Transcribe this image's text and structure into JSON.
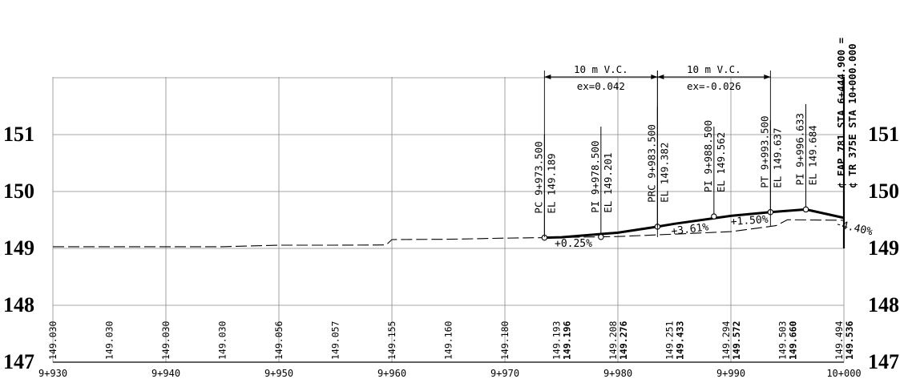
{
  "elevation_labels": [
    "151",
    "150",
    "149",
    "148",
    "147"
  ],
  "stations": [
    {
      "label": "9+930",
      "sta": 9930
    },
    {
      "label": "9+940",
      "sta": 9940
    },
    {
      "label": "9+950",
      "sta": 9950
    },
    {
      "label": "9+960",
      "sta": 9960
    },
    {
      "label": "9+970",
      "sta": 9970
    },
    {
      "label": "9+980",
      "sta": 9980
    },
    {
      "label": "9+990",
      "sta": 9990
    },
    {
      "label": "10+000",
      "sta": 10000
    }
  ],
  "grade_elevations": [
    {
      "sta": 9930,
      "existing": "149.030"
    },
    {
      "sta": 9935,
      "existing": "149.030"
    },
    {
      "sta": 9940,
      "existing": "149.030"
    },
    {
      "sta": 9945,
      "existing": "149.030"
    },
    {
      "sta": 9950,
      "existing": "149.056"
    },
    {
      "sta": 9955,
      "existing": "149.057"
    },
    {
      "sta": 9960,
      "existing": "149.155"
    },
    {
      "sta": 9965,
      "existing": "149.160"
    },
    {
      "sta": 9970,
      "existing": "149.180"
    },
    {
      "sta": 9975,
      "existing": "149.193",
      "proposed": "149.196"
    },
    {
      "sta": 9980,
      "existing": "149.208",
      "proposed": "149.276"
    },
    {
      "sta": 9985,
      "existing": "149.251",
      "proposed": "149.433"
    },
    {
      "sta": 9990,
      "existing": "149.294",
      "proposed": "149.572"
    },
    {
      "sta": 9995,
      "existing": "149.503",
      "proposed": "149.660"
    },
    {
      "sta": 10000,
      "existing": "149.494",
      "proposed": "149.536"
    }
  ],
  "profile_points": [
    {
      "sta_label": "PC 9+973.500",
      "el_label": "EL 149.189",
      "sta": 9973.5,
      "el": 149.189
    },
    {
      "sta_label": "PI 9+978.500",
      "el_label": "EL 149.201",
      "sta": 9978.5,
      "el": 149.201
    },
    {
      "sta_label": "PRC 9+983.500",
      "el_label": "EL 149.382",
      "sta": 9983.5,
      "el": 149.382
    },
    {
      "sta_label": "PI 9+988.500",
      "el_label": "EL 149.562",
      "sta": 9988.5,
      "el": 149.562
    },
    {
      "sta_label": "PT 9+993.500",
      "el_label": "EL 149.637",
      "sta": 9993.5,
      "el": 149.637
    },
    {
      "sta_label": "PI 9+996.633",
      "el_label": "EL 149.684",
      "sta": 9996.633,
      "el": 149.684
    }
  ],
  "grades": [
    "+0.25%",
    "+3.61%",
    "+1.50%",
    "-4.40%"
  ],
  "vertical_curves": [
    {
      "length": "10 m V.C.",
      "ex": "ex=0.042"
    },
    {
      "length": "10 m V.C.",
      "ex": "ex=-0.026"
    }
  ],
  "centerline_labels": [
    "¢ FAP 781 STA 6+444.900 =",
    "¢ TR 375E STA 10+000.000"
  ],
  "existing_ground": [
    {
      "sta": 9930,
      "el": 149.03
    },
    {
      "sta": 9935,
      "el": 149.03
    },
    {
      "sta": 9940,
      "el": 149.03
    },
    {
      "sta": 9945,
      "el": 149.03
    },
    {
      "sta": 9950,
      "el": 149.056
    },
    {
      "sta": 9955,
      "el": 149.057
    },
    {
      "sta": 9959.5,
      "el": 149.06
    },
    {
      "sta": 9960,
      "el": 149.155
    },
    {
      "sta": 9965,
      "el": 149.16
    },
    {
      "sta": 9970,
      "el": 149.18
    },
    {
      "sta": 9975,
      "el": 149.193
    },
    {
      "sta": 9980,
      "el": 149.208
    },
    {
      "sta": 9985,
      "el": 149.251
    },
    {
      "sta": 9990,
      "el": 149.294
    },
    {
      "sta": 9994,
      "el": 149.4
    },
    {
      "sta": 9995,
      "el": 149.503
    },
    {
      "sta": 10000,
      "el": 149.494
    }
  ],
  "proposed_profile": [
    {
      "sta": 9973.5,
      "el": 149.189
    },
    {
      "sta": 9975,
      "el": 149.196
    },
    {
      "sta": 9980,
      "el": 149.276
    },
    {
      "sta": 9983.5,
      "el": 149.382
    },
    {
      "sta": 9985,
      "el": 149.433
    },
    {
      "sta": 9990,
      "el": 149.572
    },
    {
      "sta": 9993.5,
      "el": 149.637
    },
    {
      "sta": 9995,
      "el": 149.66
    },
    {
      "sta": 9996.633,
      "el": 149.684
    },
    {
      "sta": 10000,
      "el": 149.536
    }
  ],
  "colors": {
    "grid": "#8a8a8a",
    "ink": "#000000"
  }
}
